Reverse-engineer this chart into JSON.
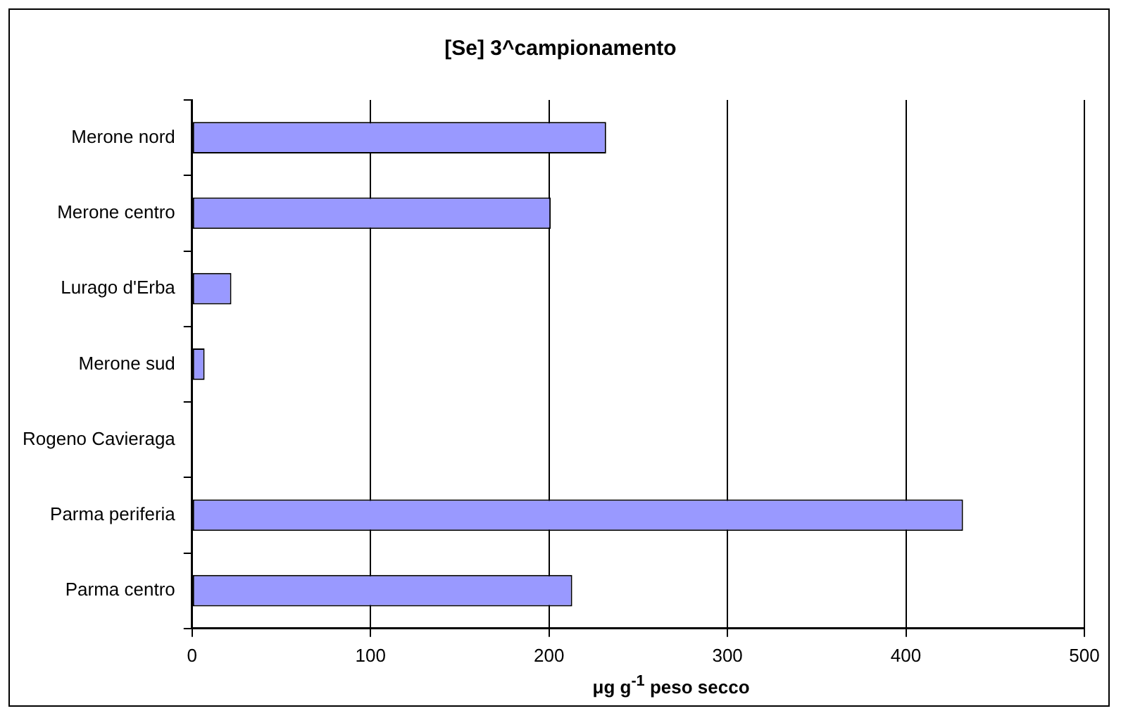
{
  "chart_data": {
    "type": "bar",
    "orientation": "horizontal",
    "title": "[Se] 3^campionamento",
    "xlabel": "μg g$^{-1}$ peso secco",
    "categories": [
      "Merone nord",
      "Merone centro",
      "Lurago d'Erba",
      "Merone sud",
      "Rogeno Cavieraga",
      "Parma periferia",
      "Parma centro"
    ],
    "values": [
      232,
      201,
      22,
      7,
      null,
      432,
      213
    ],
    "color": "#9999ff",
    "xlim": [
      0,
      500
    ],
    "xticks": [
      0,
      100,
      200,
      300,
      400,
      500
    ],
    "grid": "x",
    "legend": false
  }
}
